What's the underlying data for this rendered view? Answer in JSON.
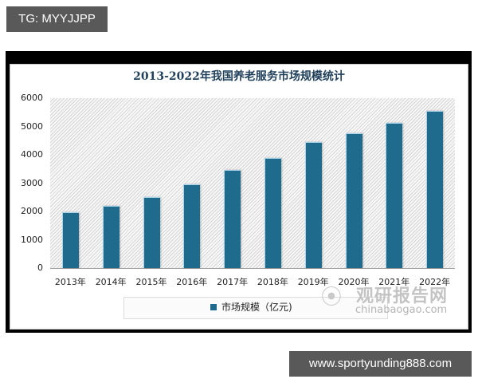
{
  "overlay": {
    "top_badge": "TG: MYYJJPP",
    "bottom_badge": "www.sportyunding888.com"
  },
  "watermark": {
    "cn": "观研报告网",
    "en": "chinabaogao.com",
    "logo_icon": "swirl-logo-icon"
  },
  "colors": {
    "bar": "#1f6b8e",
    "title": "#1f3f5a",
    "badge_bg": "#595959"
  },
  "chart_data": {
    "type": "bar",
    "title": "2013-2022年我国养老服务市场规模统计",
    "xlabel": "",
    "ylabel": "",
    "categories": [
      "2013年",
      "2014年",
      "2015年",
      "2016年",
      "2017年",
      "2018年",
      "2019年",
      "2020年",
      "2021年",
      "2022年"
    ],
    "series": [
      {
        "name": "市场规模（亿元)",
        "values": [
          1970,
          2200,
          2510,
          2960,
          3470,
          3890,
          4450,
          4760,
          5130,
          5550
        ]
      }
    ],
    "ylim": [
      0,
      6000
    ],
    "yticks": [
      "0",
      "1000",
      "2000",
      "3000",
      "4000",
      "5000",
      "6000"
    ],
    "grid": false,
    "legend_position": "bottom"
  }
}
